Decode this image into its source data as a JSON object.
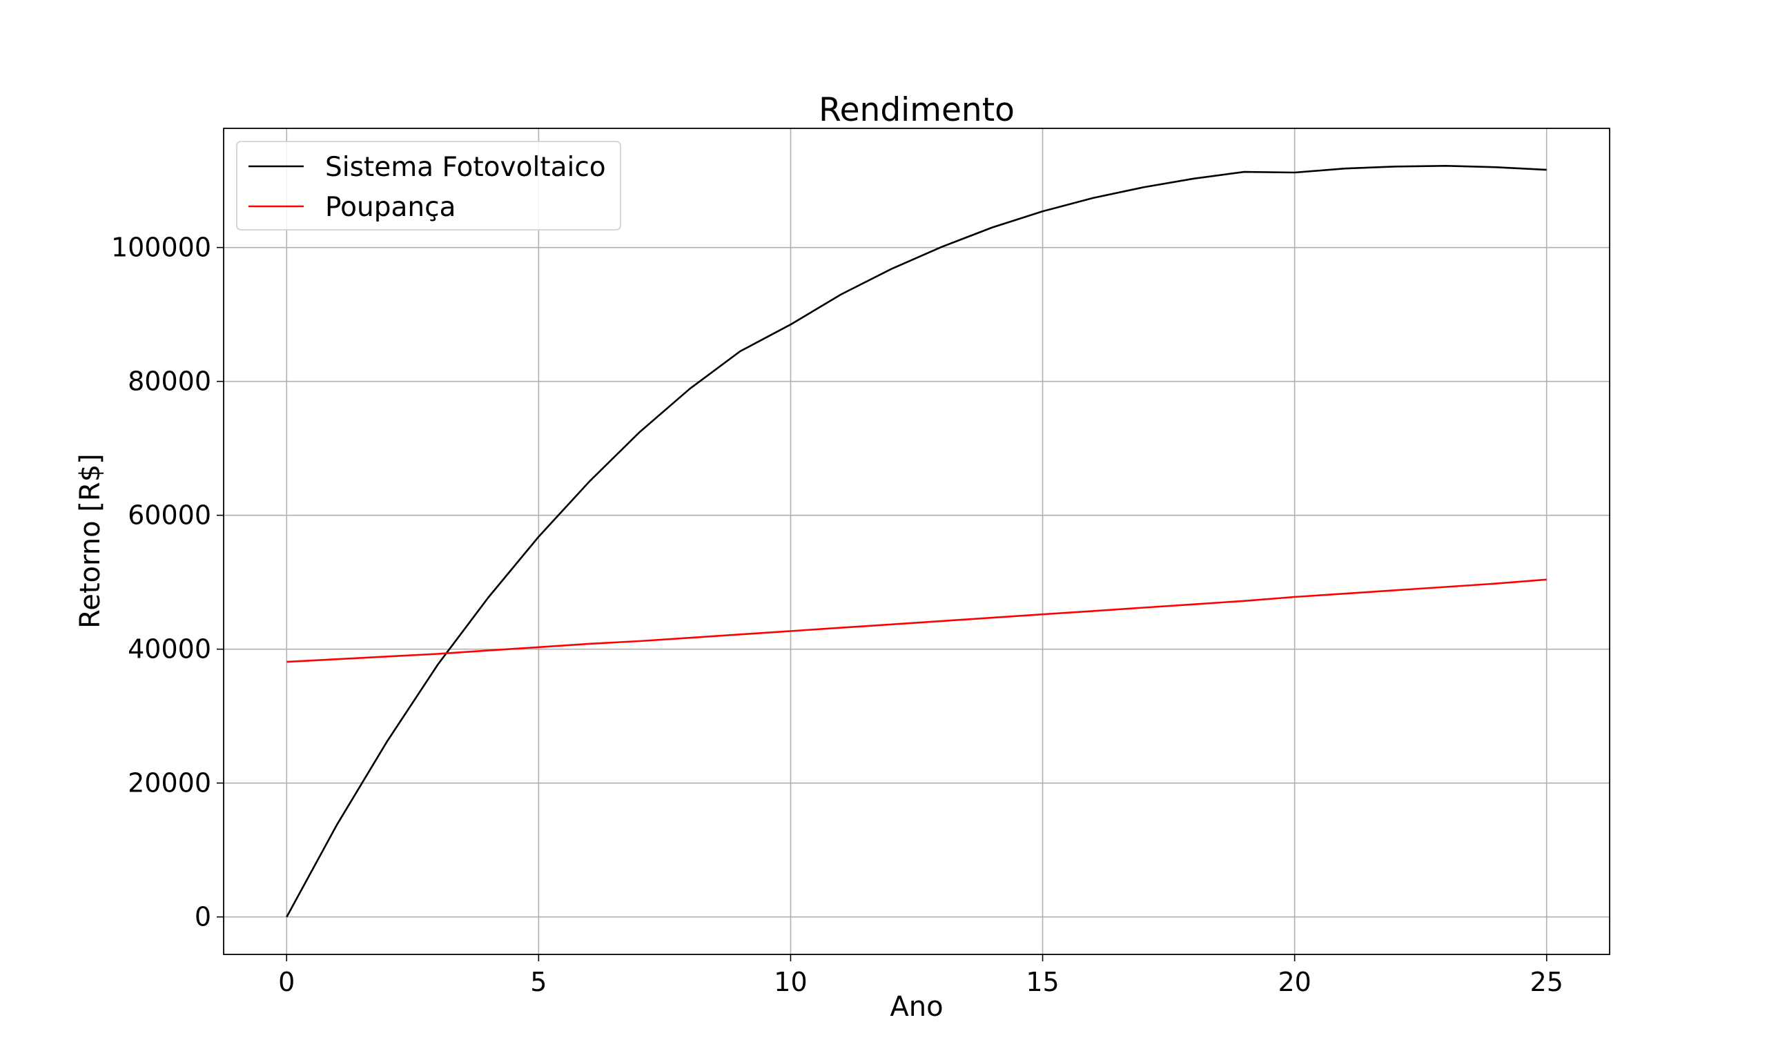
{
  "chart_data": {
    "type": "line",
    "title": "Rendimento",
    "xlabel": "Ano",
    "ylabel": "Retorno [R$]",
    "xlim": [
      -1.25,
      26.25
    ],
    "ylim": [
      -5600,
      117800
    ],
    "xticks": [
      0,
      5,
      10,
      15,
      20,
      25
    ],
    "yticks": [
      0,
      20000,
      40000,
      60000,
      80000,
      100000
    ],
    "grid": true,
    "legend": "upper-left",
    "x": [
      0,
      1,
      2,
      3,
      4,
      5,
      6,
      7,
      8,
      9,
      10,
      11,
      12,
      13,
      14,
      15,
      16,
      17,
      18,
      19,
      20,
      21,
      22,
      23,
      24,
      25
    ],
    "series": [
      {
        "name": "Sistema Fotovoltaico",
        "color": "#000000",
        "values": [
          0,
          13800,
          26300,
          37700,
          47700,
          56800,
          65000,
          72400,
          78900,
          84500,
          88500,
          93000,
          96800,
          100100,
          103000,
          105400,
          107400,
          109000,
          110300,
          111300,
          111200,
          111800,
          112100,
          112200,
          112000,
          111600
        ]
      },
      {
        "name": "Poupança",
        "color": "#ff0000",
        "values": [
          38100,
          38500,
          38900,
          39300,
          39800,
          40300,
          40800,
          41200,
          41700,
          42200,
          42700,
          43200,
          43700,
          44200,
          44700,
          45200,
          45700,
          46200,
          46700,
          47200,
          47800,
          48300,
          48800,
          49300,
          49800,
          50400
        ]
      }
    ]
  }
}
